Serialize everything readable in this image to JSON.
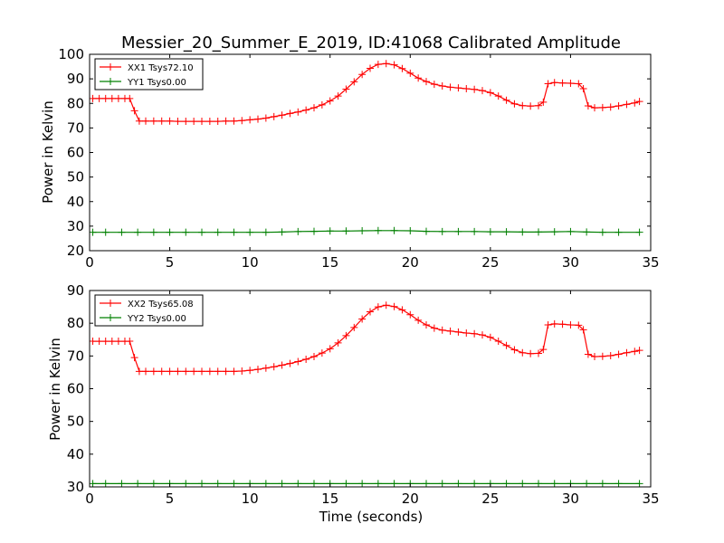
{
  "title": "Messier_20_Summer_E_2019, ID:41068 Calibrated Amplitude",
  "colors": {
    "xx": "#ff0000",
    "yy": "#008000",
    "frame": "#000000"
  },
  "chart_data": [
    {
      "type": "line",
      "xlabel": "",
      "ylabel": "Power in Kelvin",
      "xlim": [
        0,
        35
      ],
      "ylim": [
        20,
        100
      ],
      "xticks": [
        0,
        5,
        10,
        15,
        20,
        25,
        30,
        35
      ],
      "yticks": [
        20,
        30,
        40,
        50,
        60,
        70,
        80,
        90,
        100
      ],
      "xtick_labels": [
        "0",
        "5",
        "10",
        "15",
        "20",
        "25",
        "30",
        "35"
      ],
      "ytick_labels": [
        "20",
        "30",
        "40",
        "50",
        "60",
        "70",
        "80",
        "90",
        "100"
      ],
      "grid": false,
      "legend_position": "top-left",
      "series": [
        {
          "name": "XX1 Tsys72.10",
          "color": "#ff0000",
          "marker": "+",
          "x": [
            0.2,
            0.6,
            1.0,
            1.4,
            1.8,
            2.2,
            2.5,
            2.8,
            3.1,
            3.5,
            4.0,
            4.5,
            5.0,
            5.5,
            6.0,
            6.5,
            7.0,
            7.5,
            8.0,
            8.5,
            9.0,
            9.5,
            10.0,
            10.5,
            11.0,
            11.5,
            12.0,
            12.5,
            13.0,
            13.5,
            14.0,
            14.5,
            15.0,
            15.5,
            16.0,
            16.5,
            17.0,
            17.5,
            18.0,
            18.5,
            19.0,
            19.5,
            20.0,
            20.5,
            21.0,
            21.5,
            22.0,
            22.5,
            23.0,
            23.5,
            24.0,
            24.5,
            25.0,
            25.5,
            26.0,
            26.5,
            27.0,
            27.5,
            28.0,
            28.3,
            28.6,
            29.0,
            29.5,
            30.0,
            30.5,
            30.8,
            31.1,
            31.5,
            32.0,
            32.5,
            33.0,
            33.5,
            34.0,
            34.3
          ],
          "y": [
            82,
            82,
            82,
            82,
            82,
            82,
            82,
            77,
            72.8,
            72.8,
            72.8,
            72.8,
            72.8,
            72.7,
            72.7,
            72.7,
            72.7,
            72.7,
            72.7,
            72.8,
            72.8,
            73,
            73.3,
            73.6,
            74,
            74.6,
            75.2,
            75.9,
            76.5,
            77.3,
            78.2,
            79.4,
            81,
            83,
            85.8,
            88.8,
            91.8,
            94.3,
            95.9,
            96.2,
            95.7,
            94.2,
            92.3,
            90.3,
            88.9,
            87.8,
            87.1,
            86.6,
            86.3,
            86,
            85.7,
            85.2,
            84.4,
            83,
            81.3,
            79.8,
            79.1,
            78.9,
            79.1,
            80.5,
            88,
            88.5,
            88.3,
            88.2,
            88,
            86,
            79,
            78.2,
            78.3,
            78.5,
            79,
            79.6,
            80.2,
            80.8
          ]
        },
        {
          "name": "YY1 Tsys0.00",
          "color": "#008000",
          "marker": "+",
          "x": [
            0.2,
            1.0,
            2.0,
            3.0,
            4.0,
            5.0,
            6.0,
            7.0,
            8.0,
            9.0,
            10.0,
            11.0,
            12.0,
            13.0,
            14.0,
            15.0,
            16.0,
            17.0,
            18.0,
            19.0,
            20.0,
            21.0,
            22.0,
            23.0,
            24.0,
            25.0,
            26.0,
            27.0,
            28.0,
            29.0,
            30.0,
            31.0,
            32.0,
            33.0,
            34.3
          ],
          "y": [
            27.5,
            27.5,
            27.5,
            27.5,
            27.5,
            27.5,
            27.5,
            27.5,
            27.5,
            27.5,
            27.5,
            27.5,
            27.6,
            27.8,
            27.9,
            28,
            28,
            28.1,
            28.2,
            28.2,
            28.1,
            27.9,
            27.8,
            27.8,
            27.8,
            27.7,
            27.7,
            27.6,
            27.6,
            27.7,
            27.8,
            27.6,
            27.5,
            27.5,
            27.5
          ]
        }
      ]
    },
    {
      "type": "line",
      "xlabel": "Time (seconds)",
      "ylabel": "Power in Kelvin",
      "xlim": [
        0,
        35
      ],
      "ylim": [
        30,
        90
      ],
      "xticks": [
        0,
        5,
        10,
        15,
        20,
        25,
        30,
        35
      ],
      "yticks": [
        30,
        40,
        50,
        60,
        70,
        80,
        90
      ],
      "xtick_labels": [
        "0",
        "5",
        "10",
        "15",
        "20",
        "25",
        "30",
        "35"
      ],
      "ytick_labels": [
        "30",
        "40",
        "50",
        "60",
        "70",
        "80",
        "90"
      ],
      "grid": false,
      "legend_position": "top-left",
      "series": [
        {
          "name": "XX2 Tsys65.08",
          "color": "#ff0000",
          "marker": "+",
          "x": [
            0.2,
            0.6,
            1.0,
            1.4,
            1.8,
            2.2,
            2.5,
            2.8,
            3.1,
            3.5,
            4.0,
            4.5,
            5.0,
            5.5,
            6.0,
            6.5,
            7.0,
            7.5,
            8.0,
            8.5,
            9.0,
            9.5,
            10.0,
            10.5,
            11.0,
            11.5,
            12.0,
            12.5,
            13.0,
            13.5,
            14.0,
            14.5,
            15.0,
            15.5,
            16.0,
            16.5,
            17.0,
            17.5,
            18.0,
            18.5,
            19.0,
            19.5,
            20.0,
            20.5,
            21.0,
            21.5,
            22.0,
            22.5,
            23.0,
            23.5,
            24.0,
            24.5,
            25.0,
            25.5,
            26.0,
            26.5,
            27.0,
            27.5,
            28.0,
            28.3,
            28.6,
            29.0,
            29.5,
            30.0,
            30.5,
            30.8,
            31.1,
            31.5,
            32.0,
            32.5,
            33.0,
            33.5,
            34.0,
            34.3
          ],
          "y": [
            74.5,
            74.5,
            74.5,
            74.5,
            74.5,
            74.5,
            74.5,
            69.5,
            65.3,
            65.3,
            65.3,
            65.3,
            65.3,
            65.3,
            65.3,
            65.3,
            65.3,
            65.3,
            65.3,
            65.3,
            65.3,
            65.4,
            65.6,
            65.9,
            66.3,
            66.7,
            67.2,
            67.7,
            68.3,
            69,
            69.8,
            70.9,
            72.2,
            74,
            76.2,
            78.7,
            81.3,
            83.5,
            85,
            85.5,
            85.1,
            84.1,
            82.6,
            80.9,
            79.5,
            78.5,
            77.9,
            77.6,
            77.3,
            77,
            76.8,
            76.4,
            75.7,
            74.5,
            73.2,
            71.9,
            71,
            70.7,
            70.8,
            72,
            79.5,
            79.8,
            79.7,
            79.5,
            79.4,
            78,
            70.5,
            69.8,
            69.9,
            70.1,
            70.5,
            71,
            71.4,
            71.7
          ]
        },
        {
          "name": "YY2 Tsys0.00",
          "color": "#008000",
          "marker": "+",
          "x": [
            0.2,
            1.0,
            2.0,
            3.0,
            4.0,
            5.0,
            6.0,
            7.0,
            8.0,
            9.0,
            10.0,
            11.0,
            12.0,
            13.0,
            14.0,
            15.0,
            16.0,
            17.0,
            18.0,
            19.0,
            20.0,
            21.0,
            22.0,
            23.0,
            24.0,
            25.0,
            26.0,
            27.0,
            28.0,
            29.0,
            30.0,
            31.0,
            32.0,
            33.0,
            34.3
          ],
          "y": [
            31,
            31,
            31,
            31,
            31,
            31,
            31,
            31,
            31,
            31,
            31,
            31,
            31,
            31,
            31,
            31,
            31,
            31,
            31,
            31,
            31,
            31,
            31,
            31,
            31,
            31,
            31,
            31,
            31,
            31,
            31,
            31,
            31,
            31,
            31
          ]
        }
      ]
    }
  ]
}
